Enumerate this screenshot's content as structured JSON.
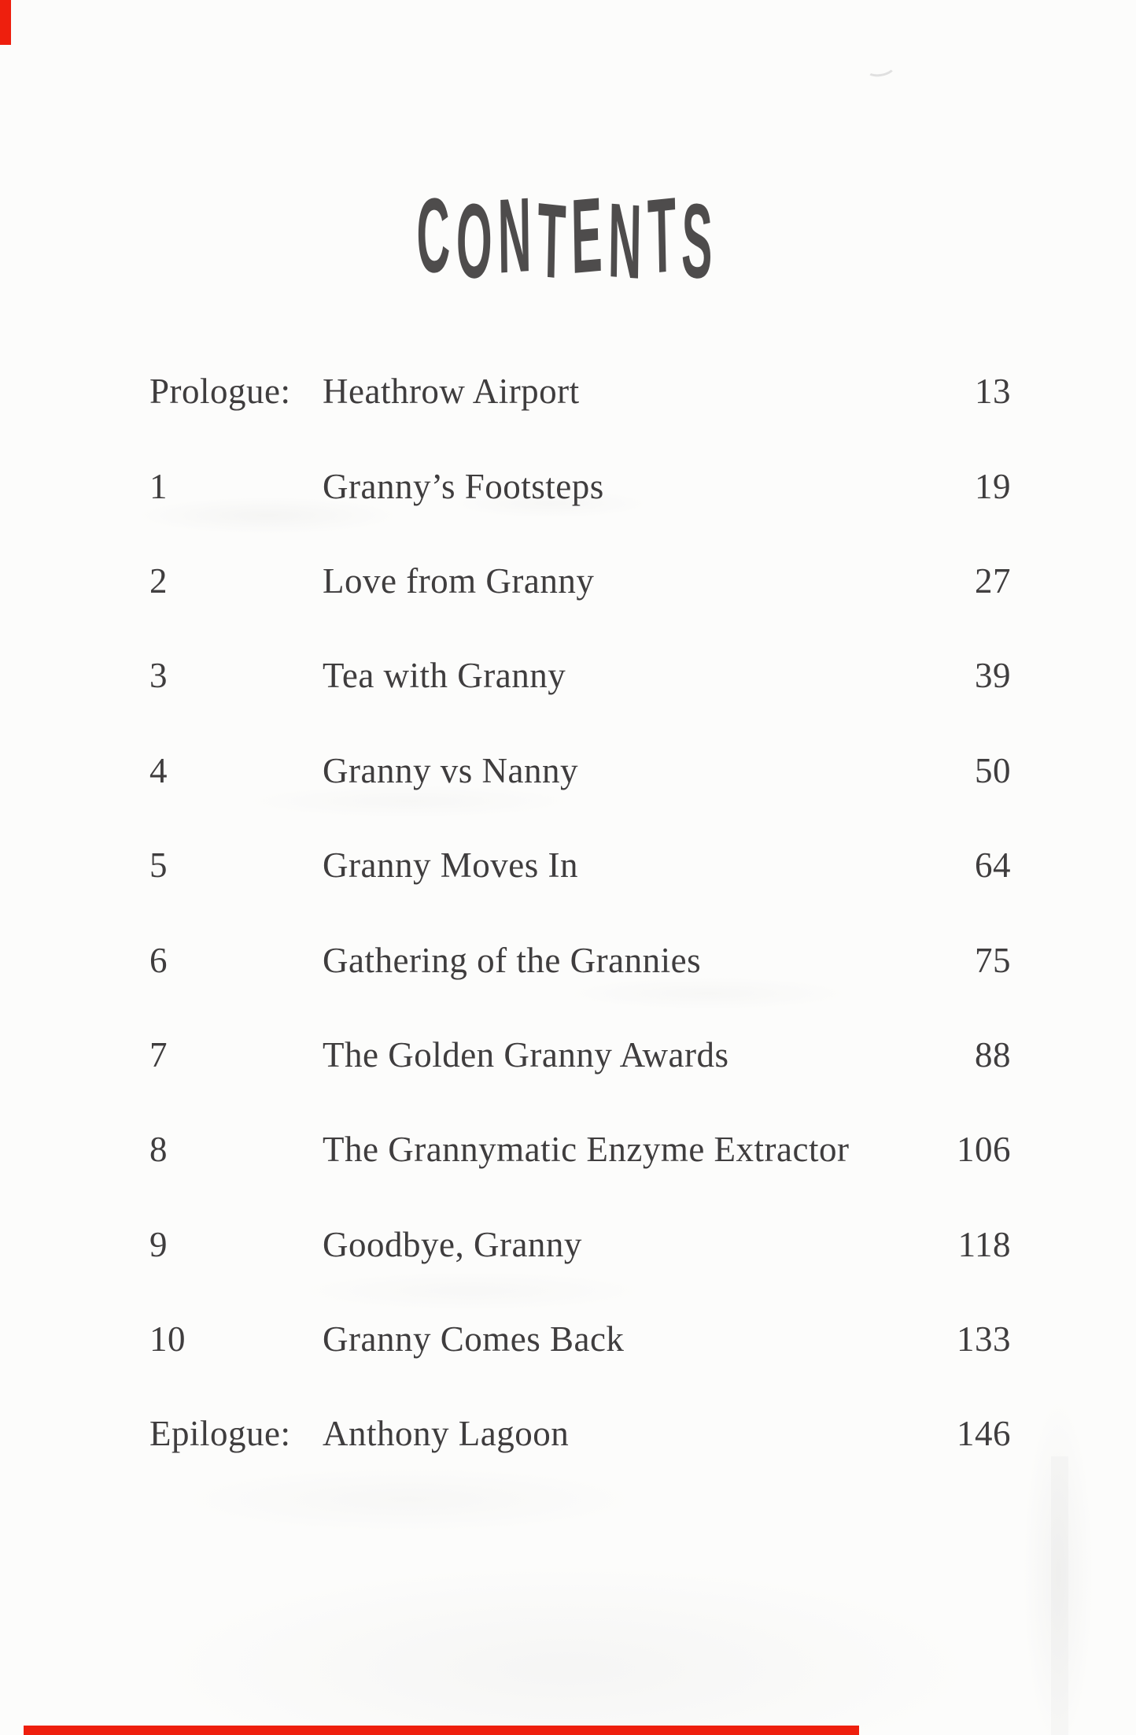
{
  "page": {
    "title": "CONTENTS"
  },
  "toc": {
    "entries": [
      {
        "label": "Prologue:",
        "title": "Heathrow Airport",
        "page": "13"
      },
      {
        "label": "1",
        "title": "Granny’s Footsteps",
        "page": "19"
      },
      {
        "label": "2",
        "title": "Love from Granny",
        "page": "27"
      },
      {
        "label": "3",
        "title": "Tea with Granny",
        "page": "39"
      },
      {
        "label": "4",
        "title": "Granny vs Nanny",
        "page": "50"
      },
      {
        "label": "5",
        "title": "Granny Moves In",
        "page": "64"
      },
      {
        "label": "6",
        "title": "Gathering of the Grannies",
        "page": "75"
      },
      {
        "label": "7",
        "title": "The Golden Granny Awards",
        "page": "88"
      },
      {
        "label": "8",
        "title": "The Grannymatic Enzyme Extractor",
        "page": "106"
      },
      {
        "label": "9",
        "title": "Goodbye, Granny",
        "page": "118"
      },
      {
        "label": "10",
        "title": "Granny Comes Back",
        "page": "133"
      },
      {
        "label": "Epilogue:",
        "title": "Anthony Lagoon",
        "page": "146"
      }
    ]
  },
  "colors": {
    "paper": "#fcfcfb",
    "ink": "#3f3d3e",
    "title_ink": "#4e4c4c",
    "scan_mark_red": "#ee1f0e"
  }
}
